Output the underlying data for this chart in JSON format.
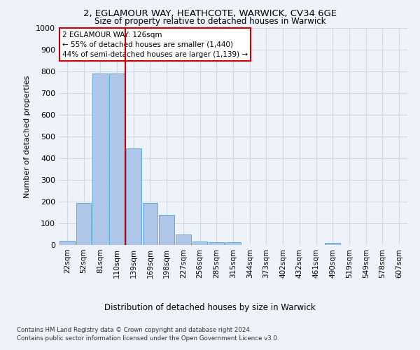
{
  "title_line1": "2, EGLAMOUR WAY, HEATHCOTE, WARWICK, CV34 6GE",
  "title_line2": "Size of property relative to detached houses in Warwick",
  "xlabel": "Distribution of detached houses by size in Warwick",
  "ylabel": "Number of detached properties",
  "bar_labels": [
    "22sqm",
    "52sqm",
    "81sqm",
    "110sqm",
    "139sqm",
    "169sqm",
    "198sqm",
    "227sqm",
    "256sqm",
    "285sqm",
    "315sqm",
    "344sqm",
    "373sqm",
    "402sqm",
    "432sqm",
    "461sqm",
    "490sqm",
    "519sqm",
    "549sqm",
    "578sqm",
    "607sqm"
  ],
  "bar_values": [
    20,
    195,
    790,
    790,
    445,
    195,
    140,
    50,
    15,
    12,
    12,
    0,
    0,
    0,
    0,
    0,
    10,
    0,
    0,
    0,
    0
  ],
  "bar_color": "#aec6e8",
  "bar_edge_color": "#5a9fd4",
  "grid_color": "#d0d8e8",
  "vline_x": 3.5,
  "vline_color": "#cc0000",
  "annotation_text": "2 EGLAMOUR WAY: 126sqm\n← 55% of detached houses are smaller (1,440)\n44% of semi-detached houses are larger (1,139) →",
  "annotation_box_color": "#cc0000",
  "ylim": [
    0,
    1000
  ],
  "yticks": [
    0,
    100,
    200,
    300,
    400,
    500,
    600,
    700,
    800,
    900,
    1000
  ],
  "footer_line1": "Contains HM Land Registry data © Crown copyright and database right 2024.",
  "footer_line2": "Contains public sector information licensed under the Open Government Licence v3.0.",
  "background_color": "#eef2f9"
}
